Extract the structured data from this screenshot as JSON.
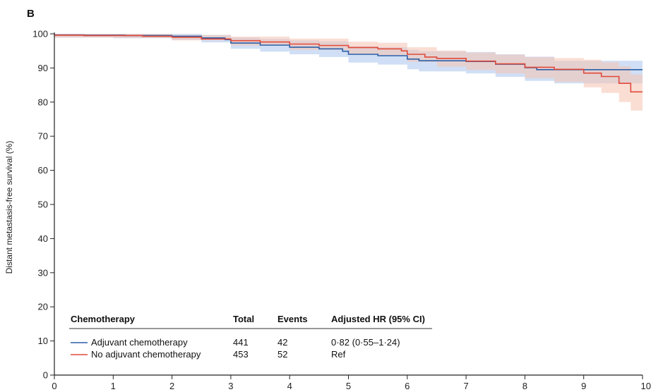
{
  "chart_data": {
    "type": "line",
    "panel_label": "B",
    "ylabel": "Distant metastasis-free survival (%)",
    "xlabel": "",
    "xlim": [
      0,
      10
    ],
    "ylim": [
      0,
      100
    ],
    "x_ticks": [
      0,
      1,
      2,
      3,
      4,
      5,
      6,
      7,
      8,
      9,
      10
    ],
    "y_ticks": [
      0,
      10,
      20,
      30,
      40,
      50,
      60,
      70,
      80,
      90,
      100
    ],
    "grid": false,
    "series": [
      {
        "name": "Adjuvant chemotherapy",
        "color": "#2b5fa8",
        "band_color": "#a9c4ec",
        "points": [
          [
            0,
            99.7
          ],
          [
            0.5,
            99.6
          ],
          [
            1.2,
            99.5
          ],
          [
            2.0,
            99.3
          ],
          [
            2.5,
            98.8
          ],
          [
            2.9,
            98.3
          ],
          [
            3.0,
            97.3
          ],
          [
            3.5,
            96.7
          ],
          [
            4.0,
            96.1
          ],
          [
            4.5,
            95.6
          ],
          [
            4.9,
            94.9
          ],
          [
            5.0,
            94.0
          ],
          [
            5.5,
            93.6
          ],
          [
            6.0,
            92.6
          ],
          [
            6.2,
            92.1
          ],
          [
            7.0,
            91.9
          ],
          [
            7.5,
            91.1
          ],
          [
            8.0,
            90.1
          ],
          [
            8.2,
            89.5
          ],
          [
            8.5,
            89.5
          ],
          [
            10.0,
            89.5
          ]
        ],
        "lower": [
          [
            0,
            98.9
          ],
          [
            1.0,
            98.7
          ],
          [
            2.0,
            98.2
          ],
          [
            2.5,
            97.5
          ],
          [
            3.0,
            95.6
          ],
          [
            3.5,
            94.8
          ],
          [
            4.0,
            94.0
          ],
          [
            4.5,
            93.2
          ],
          [
            5.0,
            91.6
          ],
          [
            5.5,
            91.0
          ],
          [
            6.0,
            89.6
          ],
          [
            6.2,
            89.0
          ],
          [
            7.0,
            88.4
          ],
          [
            7.5,
            87.4
          ],
          [
            8.0,
            86.2
          ],
          [
            8.5,
            85.5
          ],
          [
            10.0,
            85.5
          ]
        ],
        "upper": [
          [
            0,
            100
          ],
          [
            1.0,
            100
          ],
          [
            2.0,
            100
          ],
          [
            2.5,
            99.7
          ],
          [
            3.0,
            98.9
          ],
          [
            3.5,
            98.5
          ],
          [
            4.0,
            98.1
          ],
          [
            4.5,
            97.8
          ],
          [
            5.0,
            96.4
          ],
          [
            5.5,
            96.1
          ],
          [
            6.0,
            95.3
          ],
          [
            6.2,
            94.9
          ],
          [
            7.0,
            94.7
          ],
          [
            7.5,
            94.0
          ],
          [
            8.0,
            93.3
          ],
          [
            8.5,
            92.1
          ],
          [
            10.0,
            92.1
          ]
        ]
      },
      {
        "name": "No adjuvant chemotherapy",
        "color": "#e04a3a",
        "band_color": "#f6c3b0",
        "points": [
          [
            0,
            99.6
          ],
          [
            0.5,
            99.5
          ],
          [
            1.0,
            99.5
          ],
          [
            1.5,
            99.3
          ],
          [
            2.0,
            99.0
          ],
          [
            2.5,
            98.5
          ],
          [
            3.0,
            98.0
          ],
          [
            3.5,
            97.6
          ],
          [
            4.0,
            97.0
          ],
          [
            4.5,
            96.6
          ],
          [
            5.0,
            96.0
          ],
          [
            5.5,
            95.6
          ],
          [
            5.9,
            95.0
          ],
          [
            6.0,
            94.0
          ],
          [
            6.3,
            93.2
          ],
          [
            6.5,
            92.8
          ],
          [
            7.0,
            92.0
          ],
          [
            7.5,
            91.2
          ],
          [
            8.0,
            90.2
          ],
          [
            8.5,
            89.6
          ],
          [
            9.0,
            88.5
          ],
          [
            9.3,
            87.5
          ],
          [
            9.6,
            85.5
          ],
          [
            9.8,
            83.0
          ],
          [
            10.0,
            83.0
          ]
        ],
        "lower": [
          [
            0,
            98.9
          ],
          [
            1.0,
            98.8
          ],
          [
            2.0,
            98.1
          ],
          [
            3.0,
            96.6
          ],
          [
            4.0,
            95.3
          ],
          [
            5.0,
            94.1
          ],
          [
            5.5,
            93.6
          ],
          [
            6.0,
            91.8
          ],
          [
            6.5,
            90.4
          ],
          [
            7.0,
            89.4
          ],
          [
            7.5,
            88.4
          ],
          [
            8.0,
            87.0
          ],
          [
            8.5,
            85.9
          ],
          [
            9.0,
            84.3
          ],
          [
            9.3,
            82.7
          ],
          [
            9.6,
            80.0
          ],
          [
            9.8,
            77.5
          ],
          [
            10.0,
            77.5
          ]
        ],
        "upper": [
          [
            0,
            100
          ],
          [
            1.0,
            100
          ],
          [
            2.0,
            99.7
          ],
          [
            3.0,
            99.2
          ],
          [
            4.0,
            98.6
          ],
          [
            5.0,
            97.7
          ],
          [
            5.5,
            97.4
          ],
          [
            6.0,
            96.1
          ],
          [
            6.5,
            95.1
          ],
          [
            7.0,
            94.5
          ],
          [
            7.5,
            93.9
          ],
          [
            8.0,
            93.2
          ],
          [
            8.5,
            92.9
          ],
          [
            9.0,
            92.4
          ],
          [
            9.3,
            91.7
          ],
          [
            9.6,
            90.5
          ],
          [
            9.8,
            88.1
          ],
          [
            10.0,
            88.1
          ]
        ]
      }
    ],
    "table": {
      "headers": [
        "Chemotherapy",
        "Total",
        "Events",
        "Adjusted HR (95% CI)"
      ],
      "rows": [
        {
          "label": "Adjuvant chemotherapy",
          "color": "#2b5fa8",
          "total": "441",
          "events": "42",
          "hr": "0·82 (0·55–1·24)"
        },
        {
          "label": "No adjuvant chemotherapy",
          "color": "#e04a3a",
          "total": "453",
          "events": "52",
          "hr": "Ref"
        }
      ]
    }
  }
}
